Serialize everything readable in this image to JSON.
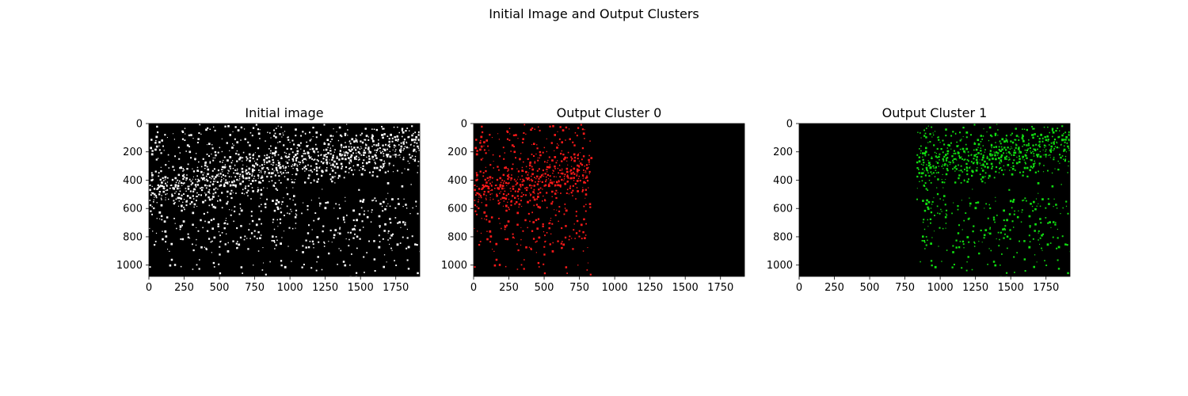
{
  "figure": {
    "suptitle": "Initial Image and Output Clusters"
  },
  "chart_data": [
    {
      "type": "heatmap",
      "title": "Initial image",
      "xlim": [
        0,
        1920
      ],
      "ylim": [
        1080,
        0
      ],
      "x_ticks": [
        0,
        250,
        500,
        750,
        1000,
        1250,
        1500,
        1750
      ],
      "y_ticks": [
        0,
        200,
        400,
        600,
        800,
        1000
      ],
      "color": "#ffffff",
      "visible_x_range": [
        0,
        1920
      ],
      "background": "#000000"
    },
    {
      "type": "heatmap",
      "title": "Output Cluster 0",
      "xlim": [
        0,
        1920
      ],
      "ylim": [
        1080,
        0
      ],
      "x_ticks": [
        0,
        250,
        500,
        750,
        1000,
        1250,
        1500,
        1750
      ],
      "y_ticks": [
        0,
        200,
        400,
        600,
        800,
        1000
      ],
      "color": "#ff1a1a",
      "visible_x_range": [
        0,
        830
      ],
      "background": "#000000"
    },
    {
      "type": "heatmap",
      "title": "Output Cluster 1",
      "xlim": [
        0,
        1920
      ],
      "ylim": [
        1080,
        0
      ],
      "x_ticks": [
        0,
        250,
        500,
        750,
        1000,
        1250,
        1500,
        1750
      ],
      "y_ticks": [
        0,
        200,
        400,
        600,
        800,
        1000
      ],
      "color": "#11dd11",
      "visible_x_range": [
        830,
        1920
      ],
      "background": "#000000"
    }
  ]
}
